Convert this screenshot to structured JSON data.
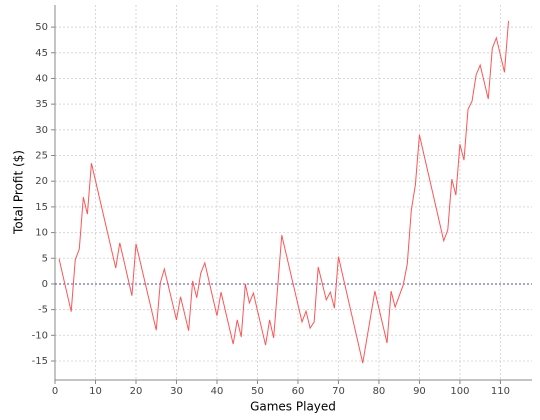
{
  "chart_data": {
    "type": "line",
    "x_label": "Games Played",
    "y_label": "Total Profit ($)",
    "x": [
      1,
      4,
      5,
      6,
      7,
      8,
      9,
      15,
      16,
      19,
      20,
      25,
      26,
      27,
      30,
      31,
      33,
      34,
      35,
      36,
      37,
      40,
      41,
      44,
      45,
      46,
      47,
      48,
      49,
      52,
      53,
      54,
      56,
      61,
      62,
      63,
      64,
      65,
      67,
      68,
      69,
      70,
      76,
      79,
      82,
      83,
      84,
      86,
      87,
      88,
      89,
      90,
      96,
      97,
      98,
      99,
      100,
      101,
      102,
      103,
      104,
      105,
      107,
      108,
      109,
      111,
      112
    ],
    "values": [
      4.9,
      -5.4,
      4.7,
      6.8,
      16.9,
      13.6,
      23.5,
      3.1,
      8,
      -2.3,
      7.8,
      -9,
      0.2,
      2.9,
      -7,
      -2.5,
      -9.1,
      0.6,
      -2.7,
      2.1,
      4.1,
      -6.2,
      -1.6,
      -11.7,
      -7,
      -10.3,
      0,
      -3.7,
      -1.8,
      -11.9,
      -7,
      -10.5,
      9.5,
      -7.4,
      -5.3,
      -8.6,
      -7.4,
      3.3,
      -3.1,
      -1.6,
      -4.7,
      5.3,
      -15.4,
      -1.4,
      -11.5,
      -1.4,
      -4.5,
      -0.2,
      3.9,
      14.4,
      19.3,
      29,
      8.4,
      10.5,
      20.4,
      17.3,
      27.2,
      24.1,
      34,
      35.6,
      40.7,
      42.6,
      36,
      45.9,
      47.9,
      41.2,
      51.2
    ],
    "color": "#ff5555",
    "xlim": [
      0,
      117.8
    ],
    "xticks": [
      0,
      10,
      20,
      30,
      40,
      50,
      60,
      70,
      80,
      90,
      100,
      110
    ],
    "ylim": [
      -18.7,
      54.3
    ],
    "yticks": [
      -15,
      -10,
      -5,
      0,
      5,
      10,
      15,
      20,
      25,
      30,
      35,
      40,
      45,
      50
    ],
    "grid": true,
    "zero_line": true,
    "zero_line_color": "#4444cc"
  }
}
